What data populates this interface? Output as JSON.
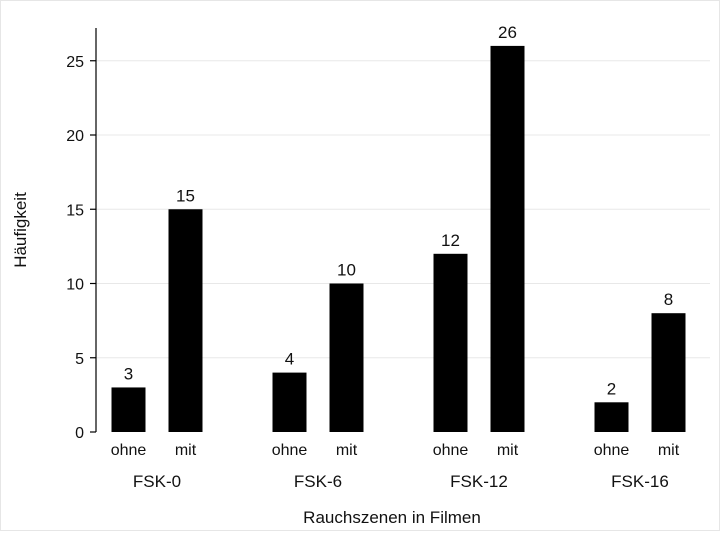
{
  "chart_data": {
    "type": "bar",
    "title": "",
    "xlabel": "Rauchszenen in Filmen",
    "ylabel": "Häufigkeit",
    "ylim": [
      0,
      27
    ],
    "yticks": [
      0,
      5,
      10,
      15,
      20,
      25
    ],
    "grid": true,
    "legend": "none",
    "bar_color": "#000000",
    "grid_color": "#e8e8e8",
    "groups": [
      {
        "label": "FSK-0",
        "bars": [
          {
            "label": "ohne",
            "value": 3
          },
          {
            "label": "mit",
            "value": 15
          }
        ]
      },
      {
        "label": "FSK-6",
        "bars": [
          {
            "label": "ohne",
            "value": 4
          },
          {
            "label": "mit",
            "value": 10
          }
        ]
      },
      {
        "label": "FSK-12",
        "bars": [
          {
            "label": "ohne",
            "value": 12
          },
          {
            "label": "mit",
            "value": 26
          }
        ]
      },
      {
        "label": "FSK-16",
        "bars": [
          {
            "label": "ohne",
            "value": 2
          },
          {
            "label": "mit",
            "value": 8
          }
        ]
      }
    ]
  }
}
